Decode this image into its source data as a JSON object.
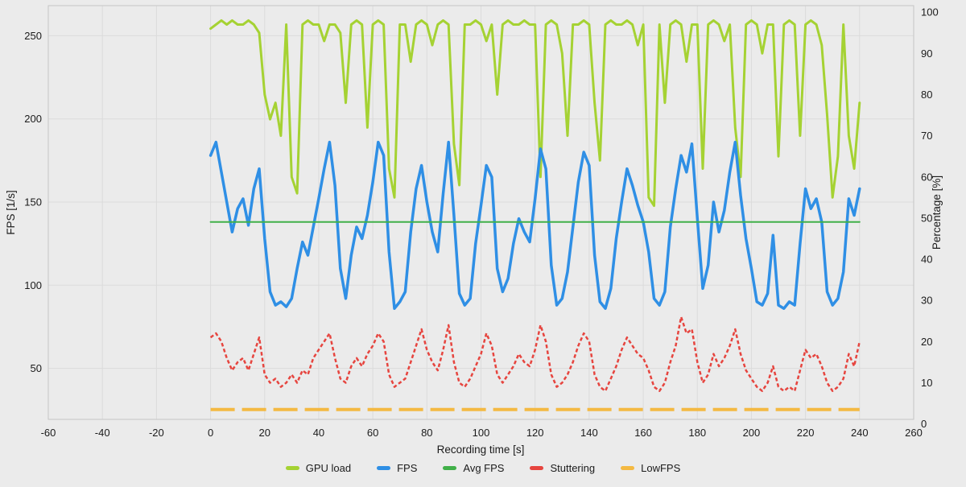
{
  "app": {
    "background_color": "#ebebeb",
    "grid_color": "#dbdbdb",
    "plot_border_color": "#c6c6c6",
    "text_color": "#1b1b1b"
  },
  "chart_data": {
    "type": "line",
    "title": "",
    "x_axis": {
      "label": "Recording time [s]",
      "min": -60,
      "max": 260,
      "ticks": [
        -60,
        -40,
        -20,
        0,
        20,
        40,
        60,
        80,
        100,
        120,
        140,
        160,
        180,
        200,
        220,
        240,
        260
      ]
    },
    "y_left": {
      "label": "FPS [1/s]",
      "min": 19.3,
      "max": 268.1,
      "ticks": [
        50,
        100,
        150,
        200,
        250
      ]
    },
    "y_right": {
      "label": "Percentage [%]",
      "min": 1.1,
      "max": 101.6,
      "ticks": [
        0,
        10,
        20,
        30,
        40,
        50,
        60,
        70,
        80,
        90,
        100
      ]
    },
    "grid": {
      "vertical": true,
      "horizontal": true,
      "legend_position": "bottom-center"
    },
    "legend": {
      "items": [
        {
          "label": "GPU load",
          "color": "#a5d233"
        },
        {
          "label": "FPS",
          "color": "#2f8fe5"
        },
        {
          "label": "Avg FPS",
          "color": "#41b049"
        },
        {
          "label": "Stuttering",
          "color": "#e6453f"
        },
        {
          "label": "LowFPS",
          "color": "#f4b942"
        }
      ]
    },
    "series": [
      {
        "name": "GPU load",
        "axis": "right",
        "color": "#a5d233",
        "width": 3,
        "dash": null,
        "x_start": 0,
        "x_step": 2,
        "values": [
          96,
          97,
          98,
          97,
          98,
          97,
          97,
          98,
          97,
          95,
          80,
          74,
          78,
          70,
          97,
          60,
          56,
          97,
          98,
          97,
          97,
          93,
          97,
          97,
          95,
          78,
          97,
          98,
          97,
          72,
          97,
          98,
          97,
          62,
          55,
          97,
          97,
          88,
          97,
          98,
          97,
          92,
          97,
          98,
          97,
          68,
          58,
          97,
          97,
          98,
          97,
          93,
          97,
          80,
          97,
          98,
          97,
          97,
          98,
          97,
          97,
          60,
          97,
          98,
          97,
          90,
          70,
          97,
          97,
          98,
          97,
          78,
          64,
          97,
          98,
          97,
          97,
          98,
          97,
          92,
          97,
          55,
          53,
          97,
          78,
          97,
          98,
          97,
          88,
          97,
          97,
          62,
          97,
          98,
          97,
          93,
          97,
          72,
          60,
          97,
          98,
          97,
          90,
          97,
          97,
          65,
          97,
          98,
          97,
          70,
          97,
          98,
          97,
          92,
          75,
          55,
          65,
          97,
          70,
          62,
          78
        ]
      },
      {
        "name": "FPS",
        "axis": "left",
        "color": "#2f8fe5",
        "width": 3.5,
        "dash": null,
        "x_start": 0,
        "x_step": 2,
        "values": [
          178,
          186,
          168,
          150,
          132,
          146,
          152,
          136,
          158,
          170,
          128,
          96,
          88,
          90,
          87,
          92,
          110,
          126,
          118,
          135,
          152,
          170,
          186,
          160,
          110,
          92,
          118,
          135,
          128,
          142,
          162,
          186,
          178,
          120,
          86,
          90,
          96,
          132,
          158,
          172,
          150,
          132,
          120,
          155,
          186,
          142,
          95,
          88,
          92,
          125,
          148,
          172,
          165,
          110,
          96,
          104,
          125,
          140,
          132,
          126,
          152,
          182,
          170,
          112,
          88,
          92,
          108,
          135,
          162,
          180,
          172,
          118,
          90,
          86,
          98,
          128,
          150,
          170,
          160,
          148,
          138,
          120,
          92,
          88,
          96,
          135,
          158,
          178,
          168,
          185,
          140,
          98,
          112,
          150,
          132,
          145,
          168,
          186,
          154,
          128,
          110,
          90,
          88,
          95,
          130,
          88,
          86,
          90,
          88,
          125,
          158,
          146,
          152,
          138,
          96,
          88,
          92,
          108,
          152,
          142,
          158
        ]
      },
      {
        "name": "Stuttering",
        "axis": "right",
        "color": "#e6453f",
        "width": 2.5,
        "dash": [
          4.5,
          3
        ],
        "x_start": 0,
        "x_step": 2,
        "values": [
          21,
          22,
          20,
          16,
          13,
          15,
          16,
          13,
          17,
          21,
          12,
          10,
          11,
          9,
          10,
          12,
          10,
          13,
          12,
          16,
          18,
          20,
          22,
          16,
          11,
          10,
          14,
          16,
          14,
          17,
          19,
          22,
          20,
          12,
          9,
          10,
          11,
          15,
          19,
          23,
          18,
          15,
          13,
          18,
          24,
          15,
          10,
          9,
          11,
          14,
          17,
          22,
          19,
          12,
          10,
          12,
          14,
          17,
          15,
          14,
          18,
          24,
          20,
          12,
          9,
          10,
          12,
          15,
          19,
          22,
          20,
          12,
          9,
          8,
          11,
          14,
          18,
          21,
          19,
          17,
          16,
          13,
          9,
          8,
          10,
          15,
          19,
          26,
          22,
          23,
          15,
          10,
          12,
          17,
          14,
          16,
          19,
          23,
          17,
          13,
          11,
          9,
          8,
          10,
          14,
          9,
          8,
          9,
          8,
          13,
          18,
          16,
          17,
          14,
          10,
          8,
          9,
          11,
          17,
          14,
          20
        ]
      },
      {
        "name": "LowFPS",
        "axis": "right",
        "color": "#f4b942",
        "width": 4,
        "dash": [
          30,
          9
        ],
        "constant": 3.5,
        "x_range": [
          0,
          240
        ]
      },
      {
        "name": "Avg FPS",
        "axis": "left",
        "color": "#41b049",
        "width": 2,
        "dash": null,
        "constant": 138,
        "x_range": [
          0,
          240
        ]
      }
    ]
  }
}
